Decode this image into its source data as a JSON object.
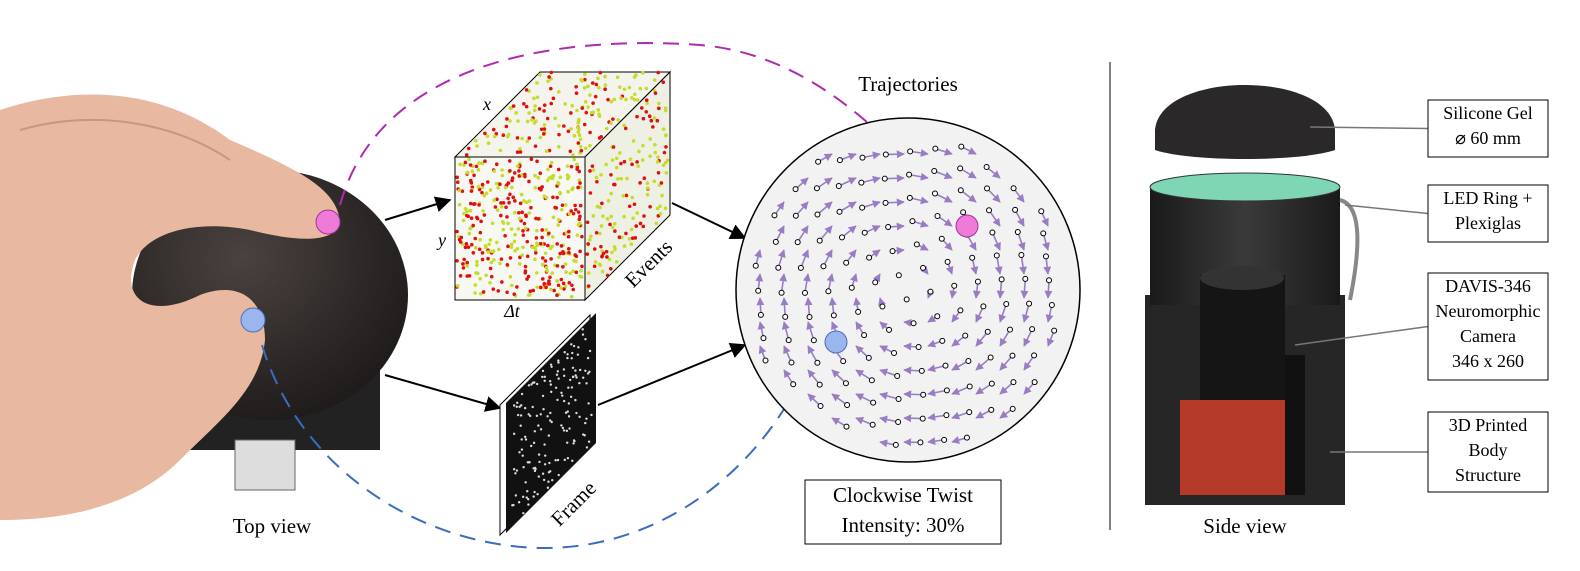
{
  "top_view": {
    "caption": "Top view"
  },
  "events": {
    "axis_x": "x",
    "axis_y": "y",
    "axis_t": "Δt",
    "label": "Events"
  },
  "frame": {
    "label": "Frame"
  },
  "trajectories": {
    "title": "Trajectories",
    "result": [
      "Clockwise Twist",
      "Intensity: 30%"
    ]
  },
  "side_view": {
    "caption": "Side view",
    "callouts": [
      {
        "lines": [
          "Silicone Gel",
          "⌀ 60 mm"
        ]
      },
      {
        "lines": [
          "LED Ring +",
          "Plexiglas"
        ]
      },
      {
        "lines": [
          "DAVIS-346",
          "Neuromorphic",
          "Camera",
          "346 x 260"
        ]
      },
      {
        "lines": [
          "3D Printed",
          "Body",
          "Structure"
        ]
      }
    ]
  }
}
